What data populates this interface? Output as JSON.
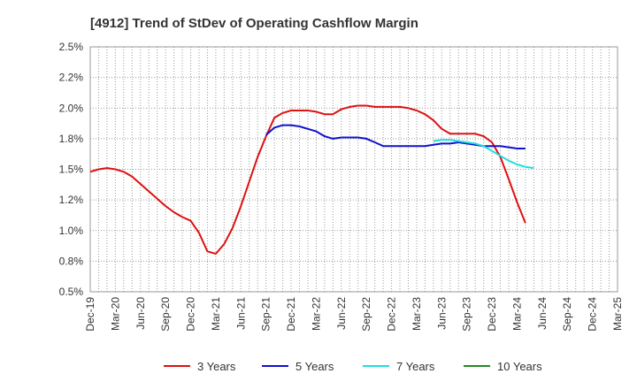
{
  "chart_data": {
    "type": "line",
    "title": "[4912]  Trend of StDev of Operating Cashflow Margin",
    "xlabel": "",
    "ylabel": "",
    "ylim": [
      0.5,
      2.5
    ],
    "y_ticks": [
      "0.5%",
      "0.8%",
      "1.0%",
      "1.2%",
      "1.5%",
      "1.8%",
      "2.0%",
      "2.2%",
      "2.5%"
    ],
    "x_tick_labels": [
      "Dec-19",
      "Mar-20",
      "Jun-20",
      "Sep-20",
      "Dec-20",
      "Mar-21",
      "Jun-21",
      "Sep-21",
      "Dec-21",
      "Mar-22",
      "Jun-22",
      "Sep-22",
      "Dec-22",
      "Mar-23",
      "Jun-23",
      "Sep-23",
      "Dec-23",
      "Mar-24",
      "Jun-24",
      "Sep-24",
      "Dec-24",
      "Mar-25"
    ],
    "grid": true,
    "legend_position": "bottom",
    "series": [
      {
        "name": "3 Years",
        "color": "#dd1111",
        "values": [
          1.48,
          1.5,
          1.51,
          1.5,
          1.48,
          1.44,
          1.38,
          1.32,
          1.26,
          1.2,
          1.15,
          1.11,
          1.08,
          0.98,
          0.83,
          0.81,
          0.89,
          1.02,
          1.2,
          1.4,
          1.6,
          1.77,
          1.92,
          1.96,
          1.98,
          1.98,
          1.98,
          1.97,
          1.95,
          1.95,
          1.99,
          2.01,
          2.02,
          2.02,
          2.01,
          2.01,
          2.01,
          2.01,
          2.0,
          1.98,
          1.95,
          1.9,
          1.83,
          1.79,
          1.79,
          1.79,
          1.79,
          1.77,
          1.72,
          1.6,
          1.42,
          1.23,
          1.06
        ]
      },
      {
        "name": "5 Years",
        "color": "#1111cc",
        "values": [
          null,
          null,
          null,
          null,
          null,
          null,
          null,
          null,
          null,
          null,
          null,
          null,
          null,
          null,
          null,
          null,
          null,
          null,
          null,
          null,
          null,
          1.78,
          1.84,
          1.86,
          1.86,
          1.85,
          1.83,
          1.81,
          1.77,
          1.75,
          1.76,
          1.76,
          1.76,
          1.75,
          1.72,
          1.69,
          1.69,
          1.69,
          1.69,
          1.69,
          1.69,
          1.7,
          1.71,
          1.71,
          1.72,
          1.71,
          1.7,
          1.69,
          1.69,
          1.69,
          1.68,
          1.67,
          1.67
        ]
      },
      {
        "name": "7 Years",
        "color": "#22dddd",
        "values": [
          null,
          null,
          null,
          null,
          null,
          null,
          null,
          null,
          null,
          null,
          null,
          null,
          null,
          null,
          null,
          null,
          null,
          null,
          null,
          null,
          null,
          null,
          null,
          null,
          null,
          null,
          null,
          null,
          null,
          null,
          null,
          null,
          null,
          null,
          null,
          null,
          null,
          null,
          null,
          null,
          null,
          1.73,
          1.74,
          1.74,
          1.73,
          1.72,
          1.71,
          1.69,
          1.65,
          1.61,
          1.57,
          1.54,
          1.52,
          1.51
        ]
      },
      {
        "name": "10 Years",
        "color": "#228822",
        "values": []
      }
    ]
  }
}
